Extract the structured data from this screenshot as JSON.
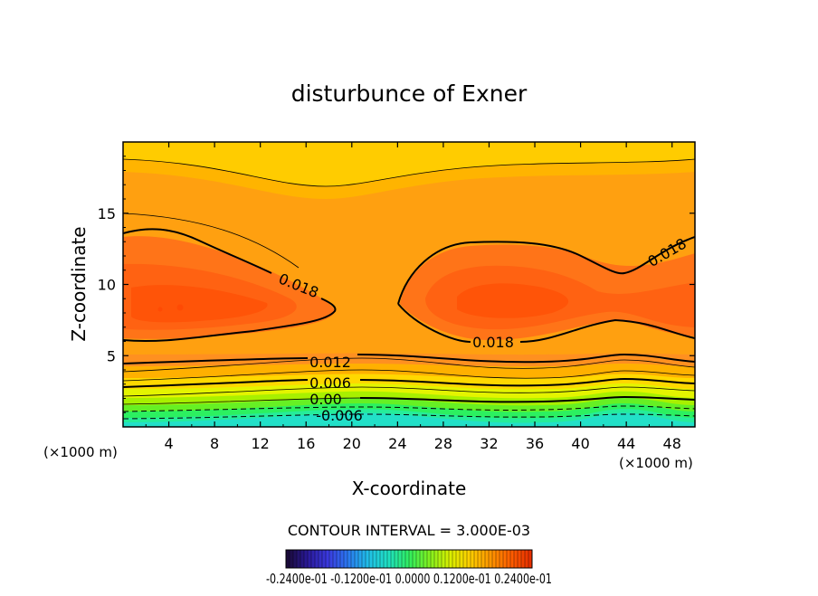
{
  "chart_data": {
    "type": "contour",
    "title": "disturbunce of Exner",
    "xlabel": "X-coordinate",
    "ylabel": "Z-coordinate",
    "x_unit_left": "(×1000 m)",
    "x_unit_right": "(×1000 m)",
    "x_ticks": [
      4,
      8,
      12,
      16,
      20,
      24,
      28,
      32,
      36,
      40,
      44,
      48
    ],
    "y_ticks": [
      5,
      10,
      15
    ],
    "xlim": [
      0,
      50
    ],
    "ylim": [
      0,
      20
    ],
    "contour_interval_text": "CONTOUR INTERVAL = 3.000E-03",
    "contour_labels": [
      "0.018",
      "0.018",
      "0.018",
      "0.012",
      "0.006",
      "0.00",
      "-0.006"
    ],
    "colorbar": {
      "label_text": "-0.2400e-01 -0.1200e-01 0.0000 0.1200e-01 0.2400e-01",
      "colors": [
        "#1a0a3a",
        "#2a1a9a",
        "#3a3ae0",
        "#2a7af0",
        "#20c0e8",
        "#20e0c0",
        "#30ee60",
        "#80f020",
        "#d8f000",
        "#ffd000",
        "#ff9800",
        "#ff6000",
        "#e83000"
      ]
    },
    "fill_colors": [
      "#22e0c8",
      "#26ec9a",
      "#2cf060",
      "#66f024",
      "#a8f000",
      "#e4f400",
      "#ffd800",
      "#ffb000",
      "#ff9020",
      "#ff7818",
      "#ff6010",
      "#ff5008"
    ]
  }
}
